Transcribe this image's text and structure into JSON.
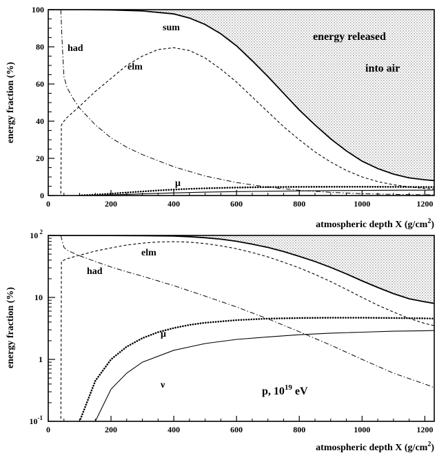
{
  "chart_data": [
    {
      "type": "line",
      "panel": "top",
      "xlabel": "atmospheric depth X (g/cm",
      "xlabel_sup": "2",
      "xlabel_close": ")",
      "ylabel": "energy fraction (%)",
      "xlim": [
        0,
        1230
      ],
      "ylim": [
        0,
        100
      ],
      "yscale": "linear",
      "x_ticks": [
        0,
        200,
        400,
        600,
        800,
        1000,
        1200
      ],
      "y_ticks": [
        0,
        20,
        40,
        60,
        80,
        100
      ],
      "annotations": {
        "sum": "sum",
        "had": "had",
        "elm": "elm",
        "mu": "μ",
        "region1": "energy released",
        "region2": "into air"
      },
      "shaded_region": "above sum curve (energy released into air)",
      "series": [
        {
          "label": "sum",
          "style": "solid-thick",
          "x": [
            0,
            100,
            200,
            300,
            400,
            450,
            500,
            550,
            600,
            650,
            700,
            750,
            800,
            850,
            900,
            950,
            1000,
            1050,
            1100,
            1150,
            1200,
            1230
          ],
          "y": [
            100,
            100,
            99.8,
            99.3,
            97.7,
            95.5,
            92,
            87,
            80.5,
            72.5,
            64,
            55,
            46,
            38,
            30.5,
            24,
            18.5,
            14.5,
            11.5,
            9.5,
            8.5,
            8
          ]
        },
        {
          "label": "elm",
          "style": "dashed",
          "x": [
            0,
            40,
            42,
            50,
            60,
            80,
            100,
            150,
            200,
            250,
            300,
            350,
            400,
            450,
            500,
            550,
            600,
            650,
            700,
            750,
            800,
            850,
            900,
            950,
            1000,
            1050,
            1100,
            1150,
            1200,
            1230
          ],
          "y": [
            0,
            0,
            38,
            40,
            42,
            45,
            48,
            56,
            63,
            70,
            75,
            78.5,
            79.5,
            78,
            74,
            68,
            61,
            53,
            45,
            37,
            30,
            23.5,
            18,
            13.5,
            10,
            7.5,
            5.8,
            4.6,
            3.8,
            3.5
          ]
        },
        {
          "label": "had",
          "style": "dashdot",
          "x": [
            40,
            45,
            50,
            60,
            80,
            100,
            150,
            200,
            250,
            300,
            400,
            500,
            600,
            700,
            800,
            900,
            1000,
            1100,
            1200,
            1230
          ],
          "y": [
            100,
            80,
            64,
            58,
            52,
            47,
            38,
            31,
            26,
            22,
            15.5,
            10.5,
            7,
            4.5,
            2.8,
            1.7,
            1,
            0.6,
            0.4,
            0.35
          ]
        },
        {
          "label": "μ",
          "style": "dotted-thick",
          "x": [
            100,
            150,
            200,
            250,
            300,
            350,
            400,
            450,
            500,
            600,
            700,
            800,
            900,
            1000,
            1100,
            1200,
            1230
          ],
          "y": [
            0.1,
            0.45,
            1,
            1.6,
            2.2,
            2.75,
            3.2,
            3.6,
            3.9,
            4.3,
            4.55,
            4.65,
            4.7,
            4.7,
            4.65,
            4.6,
            4.55
          ]
        },
        {
          "label": "ν",
          "style": "solid-thin",
          "x": [
            150,
            200,
            250,
            300,
            400,
            500,
            600,
            700,
            800,
            900,
            1000,
            1100,
            1200,
            1230
          ],
          "y": [
            0.1,
            0.33,
            0.6,
            0.9,
            1.4,
            1.8,
            2.1,
            2.3,
            2.5,
            2.65,
            2.75,
            2.85,
            2.9,
            2.92
          ]
        }
      ]
    },
    {
      "type": "line",
      "panel": "bottom",
      "xlabel": "atmospheric depth X (g/cm",
      "xlabel_sup": "2",
      "xlabel_close": ")",
      "ylabel": "energy fraction (%)",
      "xlim": [
        0,
        1230
      ],
      "ylim": [
        0.1,
        100
      ],
      "yscale": "log",
      "x_ticks": [
        0,
        200,
        400,
        600,
        800,
        1000,
        1200
      ],
      "y_ticks": [
        {
          "value": 100,
          "base": "10",
          "exp": " 2"
        },
        {
          "value": 10,
          "base": "10",
          "exp": ""
        },
        {
          "value": 1,
          "base": "1",
          "exp": ""
        },
        {
          "value": 0.1,
          "base": "10",
          "exp": "-1"
        }
      ],
      "annotations": {
        "elm": "elm",
        "had": "had",
        "mu": "μ",
        "nu": "ν",
        "primary_a": "p, 10",
        "primary_exp": "19",
        "primary_b": " eV"
      },
      "shaded_region": "above sum curve",
      "series_ref": "same series as top panel"
    }
  ]
}
